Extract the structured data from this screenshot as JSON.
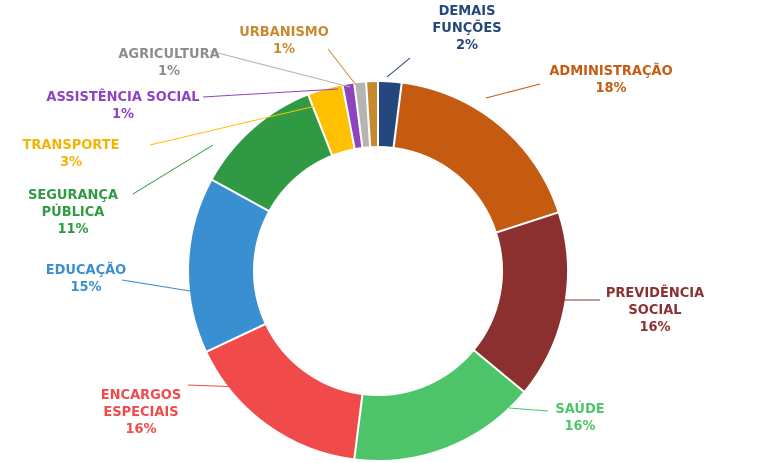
{
  "chart_data": {
    "type": "pie",
    "variant": "donut",
    "title": "",
    "legend": "none",
    "slices": [
      {
        "name": "DEMAIS FUNÇÕES",
        "label_lines": [
          "DEMAIS",
          "FUNÇÕES"
        ],
        "value": 2,
        "value_label": "2%",
        "color": "#24477d"
      },
      {
        "name": "ADMINISTRAÇÃO",
        "label_lines": [
          "ADMINISTRAÇÃO"
        ],
        "value": 18,
        "value_label": "18%",
        "color": "#c55a11"
      },
      {
        "name": "PREVIDÊNCIA SOCIAL",
        "label_lines": [
          "PREVIDÊNCIA",
          "SOCIAL"
        ],
        "value": 16,
        "value_label": "16%",
        "color": "#8b2f2f"
      },
      {
        "name": "SAÚDE",
        "label_lines": [
          "SAÚDE"
        ],
        "value": 16,
        "value_label": "16%",
        "color": "#4ec46a"
      },
      {
        "name": "ENCARGOS ESPECIAIS",
        "label_lines": [
          "ENCARGOS",
          "ESPECIAIS"
        ],
        "value": 16,
        "value_label": "16%",
        "color": "#f04a4a"
      },
      {
        "name": "EDUCAÇÃO",
        "label_lines": [
          "EDUCAÇÃO"
        ],
        "value": 15,
        "value_label": "15%",
        "color": "#3a8fd0"
      },
      {
        "name": "SEGURANÇA PÚBLICA",
        "label_lines": [
          "SEGURANÇA",
          "PÚBLICA"
        ],
        "value": 11,
        "value_label": "11%",
        "color": "#2f9a43"
      },
      {
        "name": "TRANSPORTE",
        "label_lines": [
          "TRANSPORTE"
        ],
        "value": 3,
        "value_label": "3%",
        "color": "#ffc000"
      },
      {
        "name": "ASSISTÊNCIA SOCIAL",
        "label_lines": [
          "ASSISTÊNCIA SOCIAL"
        ],
        "value": 1,
        "value_label": "1%",
        "color": "#8e44c0"
      },
      {
        "name": "AGRICULTURA",
        "label_lines": [
          "AGRICULTURA"
        ],
        "value": 1,
        "value_label": "1%",
        "color": "#b4b4b4"
      },
      {
        "name": "URBANISMO",
        "label_lines": [
          "URBANISMO"
        ],
        "value": 1,
        "value_label": "1%",
        "color": "#c8882e"
      }
    ]
  }
}
